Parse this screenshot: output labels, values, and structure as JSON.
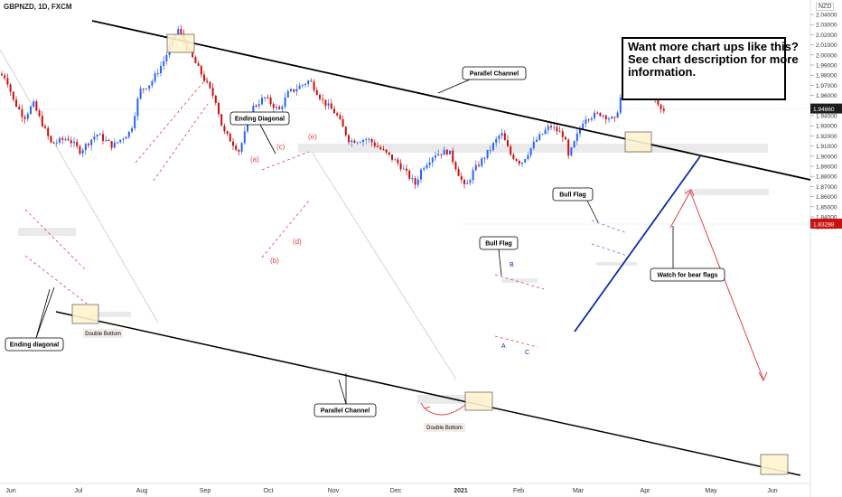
{
  "header": {
    "symbol_line": "GBPNZD, 1D, FXCM",
    "currency": "NZD"
  },
  "promo": {
    "lines": [
      "Want more chart ups like this?",
      "See chart description for more",
      "information."
    ]
  },
  "chart_data": {
    "type": "line",
    "title": "GBPNZD, 1D, FXCM",
    "ylim": [
      1.825,
      2.045
    ],
    "y_ticks": [
      "2.04000",
      "2.03000",
      "2.02000",
      "2.01000",
      "2.00000",
      "1.99000",
      "1.98000",
      "1.97000",
      "1.96000",
      "1.95000",
      "1.94000",
      "1.93000",
      "1.92000",
      "1.91000",
      "1.90000",
      "1.89000",
      "1.88000",
      "1.87000",
      "1.86000",
      "1.85000",
      "1.84000",
      "1.83000"
    ],
    "x_ticks": [
      "Jun",
      "Jul",
      "Aug",
      "Sep",
      "Oct",
      "Nov",
      "Dec",
      "2021",
      "Feb",
      "Mar",
      "Apr",
      "May",
      "Jun"
    ],
    "current_price": "1.94660",
    "target_price": "1.83288",
    "annotations": {
      "parallel_channel": "Parallel Channel",
      "ending_diagonal_top": "Ending Diagonal",
      "ending_diagonal_left": "Ending diagonal",
      "double_bottom_left": "Double Bottom",
      "double_bottom_right": "Double Bottom",
      "bull_flag_mid": "Bull Flag",
      "bull_flag_right": "Bull Flag",
      "watch": "Watch for bear flags",
      "wave_a": "(a)",
      "wave_b": "(b)",
      "wave_c": "(c)",
      "wave_d": "(d)",
      "wave_e": "(e)",
      "abc_a": "A",
      "abc_b": "B",
      "abc_c": "C"
    },
    "colors": {
      "up": "#2962ff",
      "down": "#cc0f0f",
      "channel": "#000000",
      "trendline": "#0d2ca8",
      "projection": "#e0434a",
      "target_label_bg": "#cc0f0f",
      "price_label_bg": "#1d1d1d"
    }
  }
}
